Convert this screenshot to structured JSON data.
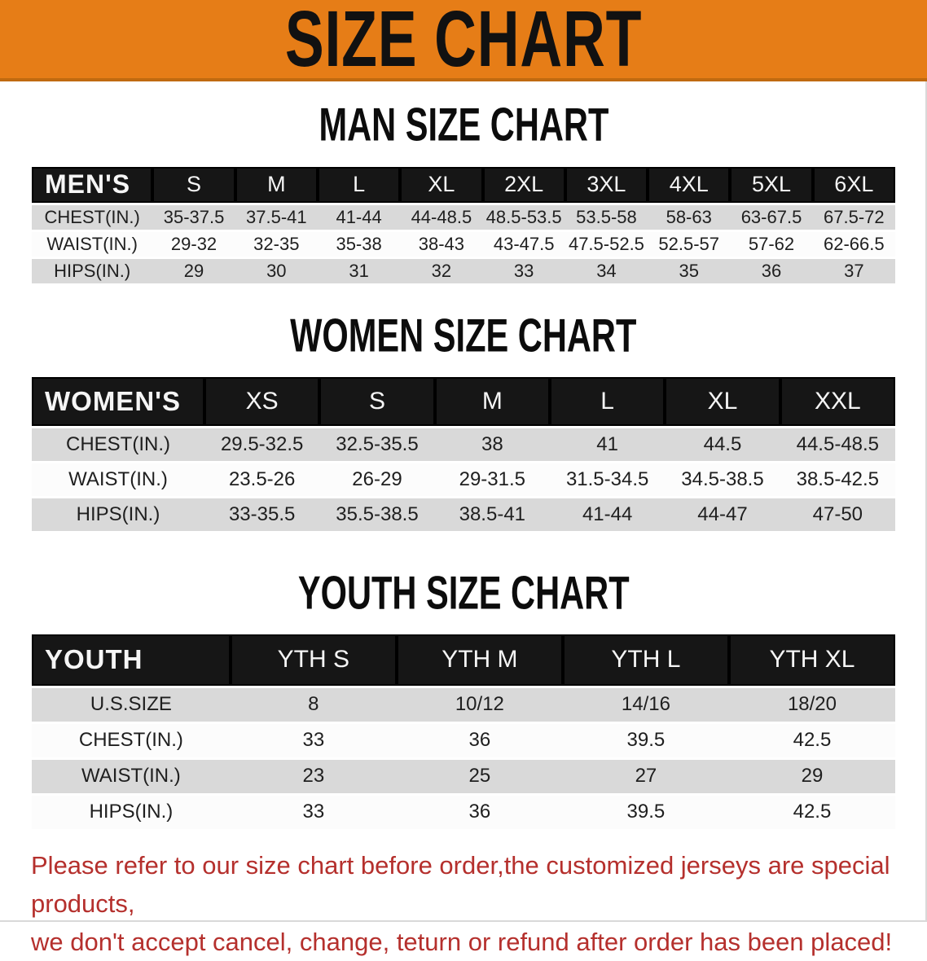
{
  "banner": {
    "title": "SIZE CHART",
    "bg_color": "#e67d17",
    "edge_color": "#c06a10"
  },
  "colors": {
    "header_bar": "#161616",
    "stripe": "#d9d9d9",
    "row_white": "#fcfcfc",
    "cell_text": "#1f1f1f",
    "heading_text": "#0c0c0c",
    "footer_text": "#b5302d"
  },
  "sections": [
    {
      "heading": "MAN SIZE CHART",
      "table": {
        "label": "MEN'S",
        "label_col_width": "14%",
        "columns": [
          "S",
          "M",
          "L",
          "XL",
          "2XL",
          "3XL",
          "4XL",
          "5XL",
          "6XL"
        ],
        "rows": [
          {
            "label": "CHEST(IN.)",
            "values": [
              "35-37.5",
              "37.5-41",
              "41-44",
              "44-48.5",
              "48.5-53.5",
              "53.5-58",
              "58-63",
              "63-67.5",
              "67.5-72"
            ]
          },
          {
            "label": "WAIST(IN.)",
            "values": [
              "29-32",
              "32-35",
              "35-38",
              "38-43",
              "43-47.5",
              "47.5-52.5",
              "52.5-57",
              "57-62",
              "62-66.5"
            ]
          },
          {
            "label": "HIPS(IN.)",
            "values": [
              "29",
              "30",
              "31",
              "32",
              "33",
              "34",
              "35",
              "36",
              "37"
            ]
          }
        ]
      }
    },
    {
      "heading": "WOMEN SIZE CHART",
      "table": {
        "label": "WOMEN'S",
        "label_col_width": "20%",
        "columns": [
          "XS",
          "S",
          "M",
          "L",
          "XL",
          "XXL"
        ],
        "rows": [
          {
            "label": "CHEST(IN.)",
            "values": [
              "29.5-32.5",
              "32.5-35.5",
              "38",
              "41",
              "44.5",
              "44.5-48.5"
            ]
          },
          {
            "label": "WAIST(IN.)",
            "values": [
              "23.5-26",
              "26-29",
              "29-31.5",
              "31.5-34.5",
              "34.5-38.5",
              "38.5-42.5"
            ]
          },
          {
            "label": "HIPS(IN.)",
            "values": [
              "33-35.5",
              "35.5-38.5",
              "38.5-41",
              "41-44",
              "44-47",
              "47-50"
            ]
          }
        ]
      }
    },
    {
      "heading": "YOUTH SIZE CHART",
      "table": {
        "label": "YOUTH",
        "label_col_width": "23%",
        "columns": [
          "YTH S",
          "YTH M",
          "YTH L",
          "YTH XL"
        ],
        "rows": [
          {
            "label": "U.S.SIZE",
            "values": [
              "8",
              "10/12",
              "14/16",
              "18/20"
            ]
          },
          {
            "label": "CHEST(IN.)",
            "values": [
              "33",
              "36",
              "39.5",
              "42.5"
            ]
          },
          {
            "label": "WAIST(IN.)",
            "values": [
              "23",
              "25",
              "27",
              "29"
            ]
          },
          {
            "label": "HIPS(IN.)",
            "values": [
              "33",
              "36",
              "39.5",
              "42.5"
            ]
          }
        ]
      }
    }
  ],
  "footer": {
    "line1": "Please refer to our size chart before order,the customized jerseys are special products,",
    "line2": "we don't accept cancel, change, teturn or refund after order has been placed!"
  }
}
